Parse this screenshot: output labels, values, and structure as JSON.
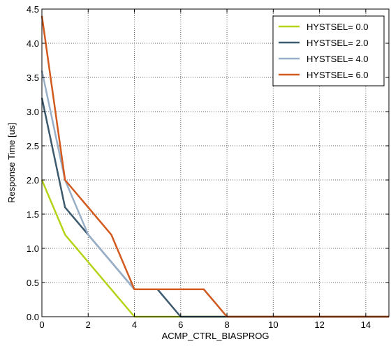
{
  "chart_data": {
    "type": "line",
    "xlabel": "ACMP_CTRL_BIASPROG",
    "ylabel": "Response Time [us]",
    "xlim": [
      0,
      15
    ],
    "ylim": [
      0,
      4.5
    ],
    "xticks": [
      0,
      2,
      4,
      6,
      8,
      10,
      12,
      14
    ],
    "yticks": [
      0.0,
      0.5,
      1.0,
      1.5,
      2.0,
      2.5,
      3.0,
      3.5,
      4.0,
      4.5
    ],
    "xtick_labels": [
      "0",
      "2",
      "4",
      "6",
      "8",
      "10",
      "12",
      "14"
    ],
    "ytick_labels": [
      "0.0",
      "0.5",
      "1.0",
      "1.5",
      "2.0",
      "2.5",
      "3.0",
      "3.5",
      "4.0",
      "4.5"
    ],
    "grid": true,
    "legend_position": "top-right",
    "x": [
      0,
      1,
      2,
      3,
      4,
      5,
      6,
      7,
      8,
      9,
      10,
      11,
      12,
      13,
      14,
      15
    ],
    "series": [
      {
        "name": "HYSTSEL= 0.0",
        "color": "#b5d318",
        "values": [
          2.0,
          1.2,
          0.8,
          0.4,
          0.0,
          0.0,
          0.0,
          0.0,
          0.0,
          0.0,
          0.0,
          0.0,
          0.0,
          0.0,
          0.0,
          0.0
        ]
      },
      {
        "name": "HYSTSEL= 2.0",
        "color": "#3d5a6e",
        "values": [
          3.2,
          1.6,
          1.2,
          0.8,
          0.4,
          0.4,
          0.0,
          0.0,
          0.0,
          0.0,
          0.0,
          0.0,
          0.0,
          0.0,
          0.0,
          0.0
        ]
      },
      {
        "name": "HYSTSEL= 4.0",
        "color": "#98afc7",
        "values": [
          3.6,
          2.0,
          1.2,
          0.8,
          0.4,
          0.4,
          0.4,
          0.4,
          0.0,
          0.0,
          0.0,
          0.0,
          0.0,
          0.0,
          0.0,
          0.0
        ]
      },
      {
        "name": "HYSTSEL= 6.0",
        "color": "#d25a1e",
        "values": [
          4.4,
          2.0,
          1.6,
          1.2,
          0.4,
          0.4,
          0.4,
          0.4,
          0.0,
          0.0,
          0.0,
          0.0,
          0.0,
          0.0,
          0.0,
          0.0
        ]
      }
    ]
  }
}
